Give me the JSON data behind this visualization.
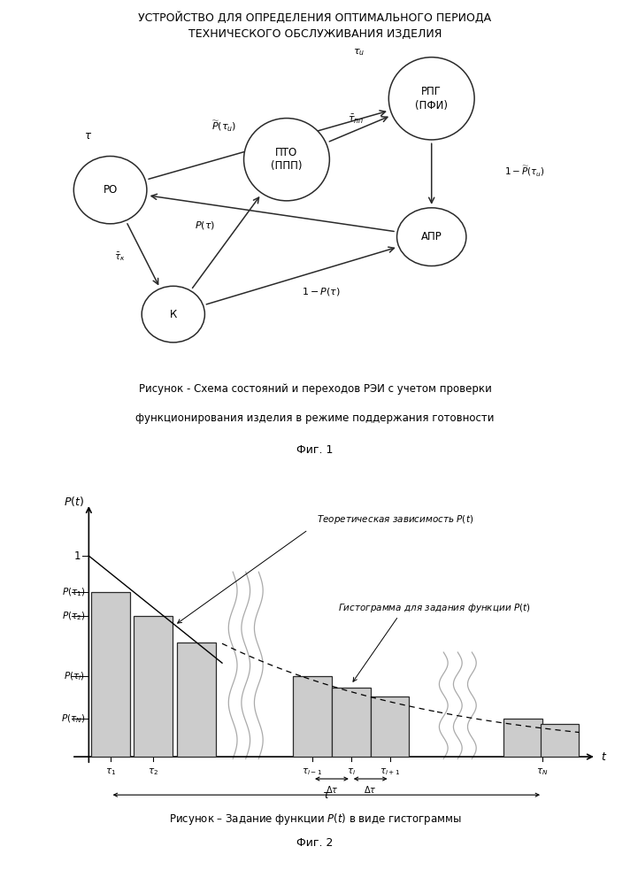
{
  "title_line1": "УСТРОЙСТВО ДЛЯ ОПРЕДЕЛЕНИЯ ОПТИМАЛЬНОГО ПЕРИОДА",
  "title_line2": "ТЕХНИЧЕСКОГО ОБСЛУЖИВАНИЯ ИЗДЕЛИЯ",
  "fig1_cap1": "Рисунок - Схема состояний и переходов РЭИ с учетом проверки",
  "fig1_cap2": "функционирования изделия в режиме поддержания готовности",
  "fig1_cap3": "Фиг. 1",
  "fig2_cap1": "Рисунок – Задание функции P(t) в виде гистограммы",
  "fig2_cap2": "Фиг. 2",
  "node_facecolor": "white",
  "node_edgecolor": "#2a2a2a",
  "arrow_color": "#2a2a2a",
  "bar_facecolor": "#cccccc",
  "bar_edgecolor": "#2a2a2a",
  "wavy_color": "#aaaaaa"
}
